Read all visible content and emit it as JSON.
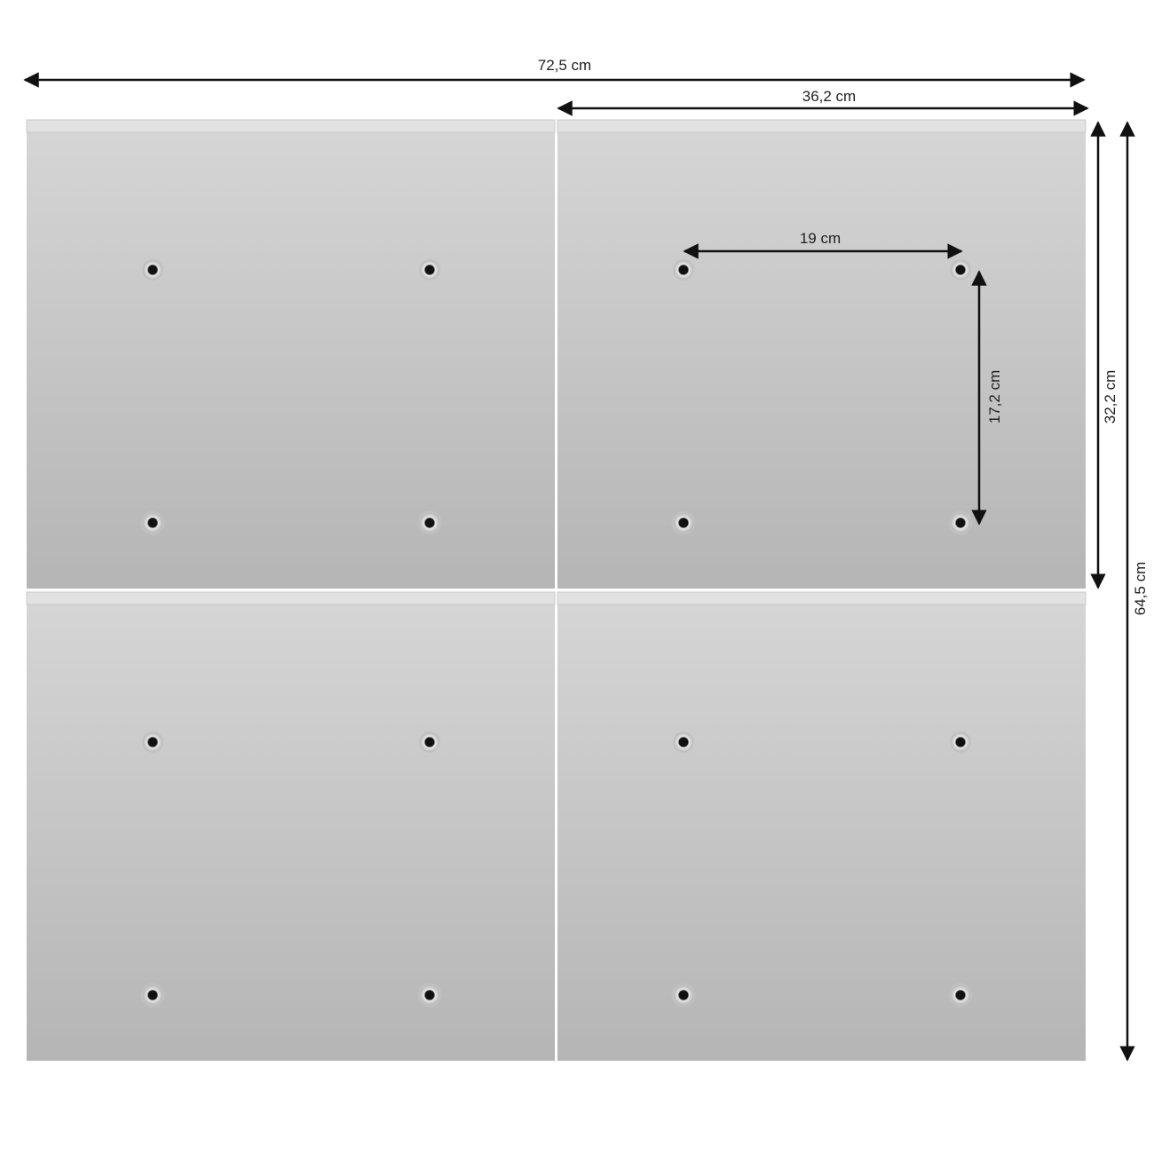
{
  "dimensions": {
    "total_width": "72,5 cm",
    "panel_width": "36,2 cm",
    "hole_spacing_horizontal": "19 cm",
    "hole_spacing_vertical": "17,2 cm",
    "panel_height": "32,2 cm",
    "total_height": "64,5 cm"
  },
  "colors": {
    "panel_top": "#d6d6d6",
    "panel_bottom": "#b5b5b5",
    "arrow": "#111111"
  }
}
